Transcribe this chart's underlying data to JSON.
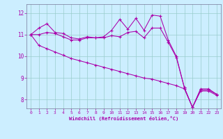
{
  "xlabel": "Windchill (Refroidissement éolien,°C)",
  "bg_color": "#cceeff",
  "line_color": "#aa00aa",
  "grid_color": "#99cccc",
  "ylim": [
    7.6,
    12.4
  ],
  "xlim": [
    -0.5,
    23.5
  ],
  "yticks": [
    8,
    9,
    10,
    11,
    12
  ],
  "xticks": [
    0,
    1,
    2,
    3,
    4,
    5,
    6,
    7,
    8,
    9,
    10,
    11,
    12,
    13,
    14,
    15,
    16,
    17,
    18,
    19,
    20,
    21,
    22,
    23
  ],
  "line1_x": [
    0,
    1,
    2,
    3,
    4,
    5,
    6,
    7,
    8,
    9,
    10,
    11,
    12,
    13,
    14,
    15,
    16,
    17,
    18,
    19,
    20,
    21,
    22,
    23
  ],
  "line1_y": [
    11.0,
    11.3,
    11.5,
    11.1,
    11.05,
    10.85,
    10.8,
    10.9,
    10.85,
    10.9,
    11.2,
    11.7,
    11.25,
    11.75,
    11.2,
    11.9,
    11.85,
    10.75,
    10.0,
    8.55,
    7.65,
    8.5,
    8.5,
    8.25
  ],
  "line2_x": [
    0,
    1,
    2,
    3,
    4,
    5,
    6,
    7,
    8,
    9,
    10,
    11,
    12,
    13,
    14,
    15,
    16,
    17,
    18,
    19,
    20,
    21,
    22,
    23
  ],
  "line2_y": [
    11.0,
    11.0,
    11.1,
    11.05,
    10.9,
    10.75,
    10.75,
    10.85,
    10.85,
    10.85,
    10.95,
    10.9,
    11.1,
    11.15,
    10.85,
    11.3,
    11.3,
    10.65,
    9.95,
    8.55,
    7.65,
    8.45,
    8.45,
    8.25
  ],
  "line3_x": [
    0,
    1,
    2,
    3,
    4,
    5,
    6,
    7,
    8,
    9,
    10,
    11,
    12,
    13,
    14,
    15,
    16,
    17,
    18,
    19,
    20,
    21,
    22,
    23
  ],
  "line3_y": [
    11.0,
    10.5,
    10.35,
    10.2,
    10.05,
    9.9,
    9.8,
    9.7,
    9.6,
    9.5,
    9.4,
    9.3,
    9.2,
    9.1,
    9.0,
    8.95,
    8.85,
    8.75,
    8.65,
    8.5,
    7.65,
    8.4,
    8.4,
    8.2
  ]
}
